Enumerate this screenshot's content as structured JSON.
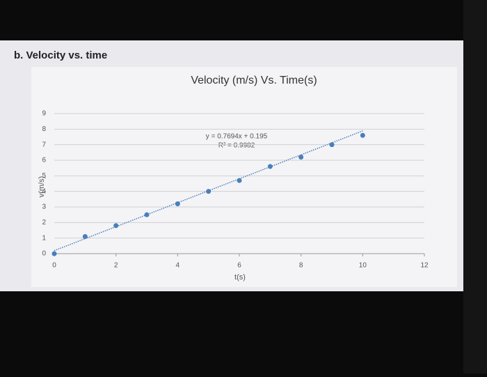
{
  "heading": "b. Velocity vs. time",
  "chart_data": {
    "type": "scatter",
    "title": "Velocity (m/s) Vs. Time(s)",
    "x_label": "t(s)",
    "y_label": "v(m/s)",
    "x": [
      0,
      1,
      2,
      3,
      4,
      5,
      6,
      7,
      8,
      9,
      10
    ],
    "values": [
      0,
      1.1,
      1.8,
      2.5,
      3.2,
      4.0,
      4.7,
      5.6,
      6.2,
      7.0,
      7.6
    ],
    "color": "#4a7ebb",
    "xlim": [
      0,
      12
    ],
    "xticks": [
      0,
      2,
      4,
      6,
      8,
      10,
      12
    ],
    "ylim": [
      0,
      9
    ],
    "yticks": [
      0,
      1,
      2,
      3,
      4,
      5,
      6,
      7,
      8,
      9
    ],
    "grid": true,
    "trendline": {
      "slope": 0.7694,
      "intercept": 0.195,
      "equation": "y = 0.7694x + 0.195",
      "r2": "R² = 0.9982"
    }
  }
}
